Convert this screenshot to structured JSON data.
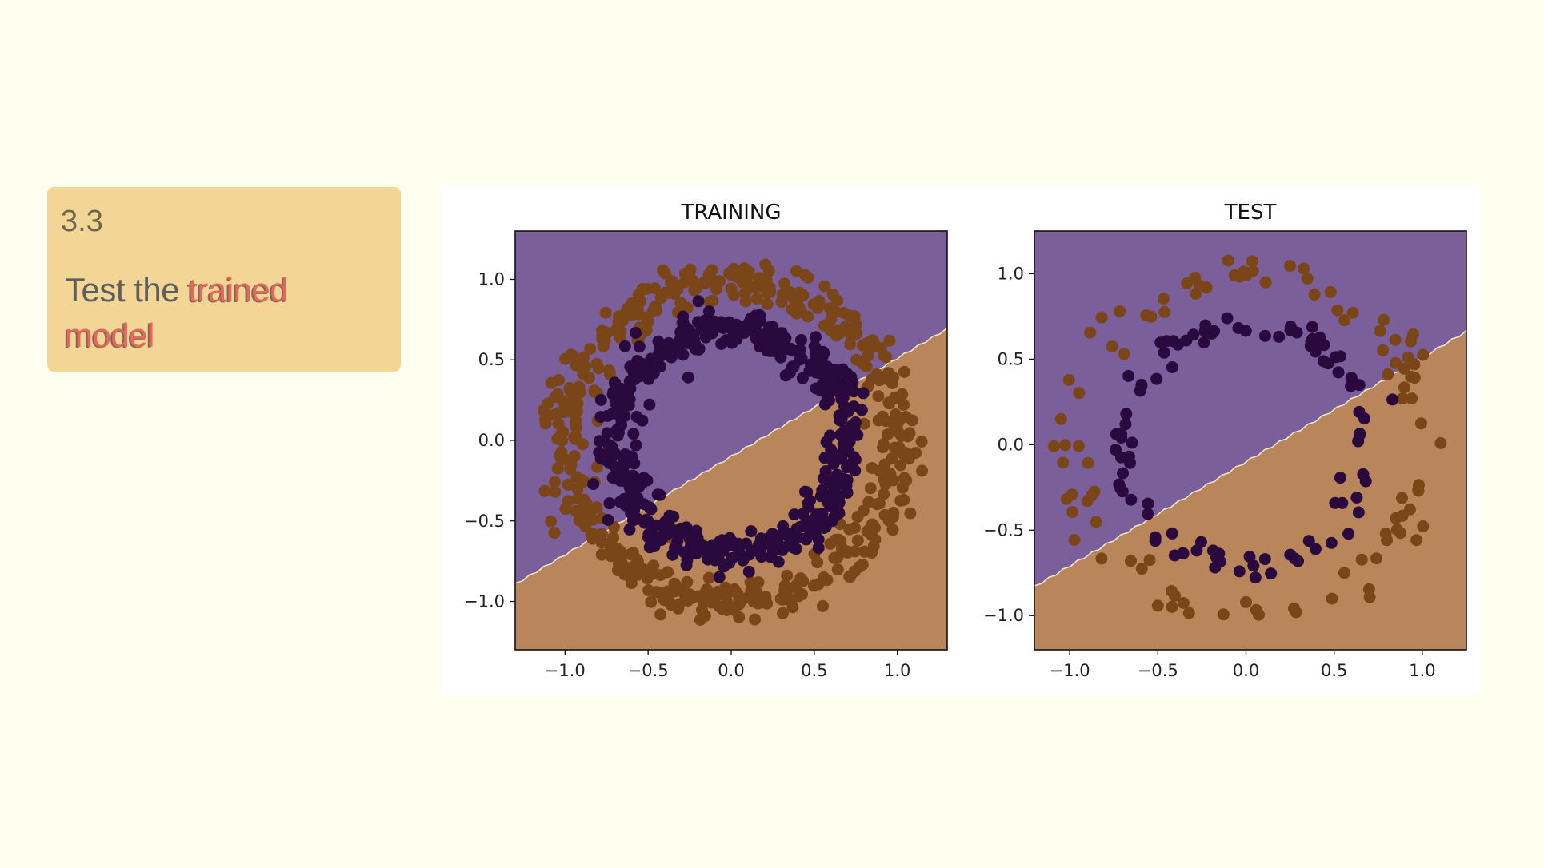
{
  "note": {
    "number": "3.3",
    "title_plain": "Test the ",
    "title_highlight_1": "trained",
    "title_highlight_2": "model"
  },
  "colors": {
    "background": "#fffff0",
    "note_card": "#f3d595",
    "highlight_text": "#e8665c",
    "region_class0": "#7a5f9a",
    "region_class1": "#b8865a",
    "point_class0": "#2a0a3e",
    "point_class1": "#7a4618",
    "boundary": "#f2e4c8"
  },
  "chart_data": [
    {
      "type": "scatter",
      "title": "TRAINING",
      "xlim": [
        -1.3,
        1.3
      ],
      "ylim": [
        -1.3,
        1.3
      ],
      "xticks": [
        -1.0,
        -0.5,
        0.0,
        0.5,
        1.0
      ],
      "yticks": [
        -1.0,
        -0.5,
        0.0,
        0.5,
        1.0
      ],
      "xtick_labels": [
        "−1.0",
        "−0.5",
        "0.0",
        "0.5",
        "1.0"
      ],
      "ytick_labels": [
        "−1.0",
        "−0.5",
        "0.0",
        "0.5",
        "1.0"
      ],
      "decision_boundary": {
        "slope": 0.61,
        "intercept": -0.1
      },
      "decision_regions": [
        "class 0 above the boundary (purple)",
        "class 1 below the boundary (brown)"
      ],
      "series": [
        {
          "class": 1,
          "color": "#7a4618",
          "shape": "ring",
          "radius": 1.0,
          "n": 500,
          "spread": 0.07
        },
        {
          "class": 0,
          "color": "#2a0a3e",
          "shape": "ring",
          "radius": 0.7,
          "n": 500,
          "spread": 0.06
        }
      ],
      "grid": false,
      "legend": "none"
    },
    {
      "type": "scatter",
      "title": "TEST",
      "xlim": [
        -1.2,
        1.25
      ],
      "ylim": [
        -1.2,
        1.25
      ],
      "xticks": [
        -1.0,
        -0.5,
        0.0,
        0.5,
        1.0
      ],
      "yticks": [
        -1.0,
        -0.5,
        0.0,
        0.5,
        1.0
      ],
      "xtick_labels": [
        "−1.0",
        "−0.5",
        "0.0",
        "0.5",
        "1.0"
      ],
      "ytick_labels": [
        "−1.0",
        "−0.5",
        "0.0",
        "0.5",
        "1.0"
      ],
      "decision_boundary": {
        "slope": 0.61,
        "intercept": -0.1
      },
      "decision_regions": [
        "class 0 above the boundary (purple)",
        "class 1 below the boundary (brown)"
      ],
      "series": [
        {
          "class": 1,
          "color": "#7a4618",
          "shape": "ring",
          "radius": 1.0,
          "n": 100,
          "spread": 0.06
        },
        {
          "class": 0,
          "color": "#2a0a3e",
          "shape": "ring",
          "radius": 0.7,
          "n": 100,
          "spread": 0.05
        }
      ],
      "grid": false,
      "legend": "none"
    }
  ]
}
